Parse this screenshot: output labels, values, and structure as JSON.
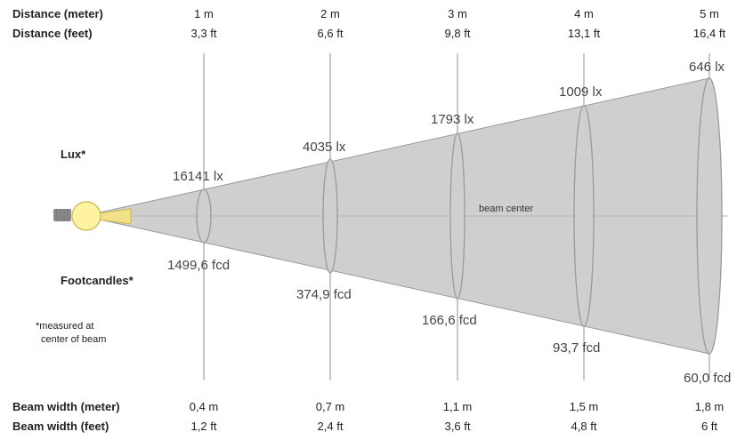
{
  "row_labels": {
    "distance_m": "Distance (meter)",
    "distance_ft": "Distance (feet)",
    "beam_width_m": "Beam width (meter)",
    "beam_width_ft": "Beam width (feet)"
  },
  "side_labels": {
    "lux": "Lux*",
    "footcandles": "Footcandles*",
    "note_line1": "*measured at",
    "note_line2": "center of beam"
  },
  "beam_center_label": "beam center",
  "positions": [
    {
      "distance_m": "1 m",
      "distance_ft": "3,3 ft",
      "lux": "16141 lx",
      "fcd": "1499,6 fcd",
      "beam_width_m": "0,4 m",
      "beam_width_ft": "1,2 ft",
      "lux_value": 16141,
      "fcd_value": 1499.6,
      "width_m": 0.4
    },
    {
      "distance_m": "2 m",
      "distance_ft": "6,6 ft",
      "lux": "4035 lx",
      "fcd": "374,9 fcd",
      "beam_width_m": "0,7 m",
      "beam_width_ft": "2,4 ft",
      "lux_value": 4035,
      "fcd_value": 374.9,
      "width_m": 0.7
    },
    {
      "distance_m": "3 m",
      "distance_ft": "9,8 ft",
      "lux": "1793 lx",
      "fcd": "166,6 fcd",
      "beam_width_m": "1,1 m",
      "beam_width_ft": "3,6 ft",
      "lux_value": 1793,
      "fcd_value": 166.6,
      "width_m": 1.1
    },
    {
      "distance_m": "4 m",
      "distance_ft": "13,1 ft",
      "lux": "1009 lx",
      "fcd": "93,7 fcd",
      "beam_width_m": "1,5 m",
      "beam_width_ft": "4,8 ft",
      "lux_value": 1009,
      "fcd_value": 93.7,
      "width_m": 1.5
    },
    {
      "distance_m": "5 m",
      "distance_ft": "16,4 ft",
      "lux": "646 lx",
      "fcd": "60,0 fcd",
      "beam_width_m": "1,8 m",
      "beam_width_ft": "6 ft",
      "lux_value": 646,
      "fcd_value": 60.0,
      "width_m": 1.8
    }
  ],
  "colors": {
    "beam_fill": "#cfcfcf",
    "beam_stroke": "#9a9a9a",
    "guide_line": "#b5b5b5",
    "lamp_fill": "#fff2a0",
    "lamp_stroke": "#c9b84a",
    "lens_fill": "#f2e08a"
  }
}
